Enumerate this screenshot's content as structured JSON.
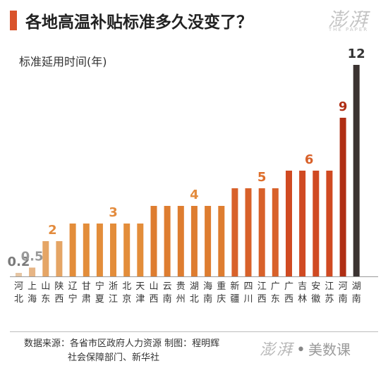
{
  "header": {
    "title": "各地高温补贴标准多久没变了？",
    "accent_color": "#d9532b",
    "logo_text": "澎湃",
    "logo_subtext": "THE PAPER"
  },
  "footer": {
    "source_line1": "数据来源：各省市区政府人力资源   制图：程明辉",
    "source_line2": "社会保障部门、新华社",
    "logo_brand": "澎湃",
    "logo_dot": "•",
    "logo_sub": "美数课"
  },
  "chart_data": {
    "type": "bar",
    "title": "各地高温补贴标准多久没变了？",
    "ylabel": "标准延用时间(年)",
    "xlabel": "",
    "ylim": [
      0,
      12
    ],
    "grid": false,
    "categories": [
      "河北",
      "上海",
      "山东",
      "陕西",
      "辽宁",
      "甘肃",
      "宁夏",
      "浙江",
      "北京",
      "天津",
      "山西",
      "云南",
      "贵州",
      "湖北",
      "海南",
      "重庆",
      "新疆",
      "四川",
      "江西",
      "广东",
      "广西",
      "吉林",
      "安徽",
      "江苏",
      "河南",
      "湖南"
    ],
    "values": [
      0.2,
      0.5,
      2,
      2,
      3,
      3,
      3,
      3,
      3,
      3,
      4,
      4,
      4,
      4,
      4,
      4,
      5,
      5,
      5,
      5,
      6,
      6,
      6,
      6,
      9,
      12
    ],
    "value_labels": [
      {
        "text": "0.2",
        "index": 0
      },
      {
        "text": "0.5",
        "index": 1
      },
      {
        "text": "2",
        "index": 2.5
      },
      {
        "text": "3",
        "index": 7
      },
      {
        "text": "4",
        "index": 13
      },
      {
        "text": "5",
        "index": 18
      },
      {
        "text": "6",
        "index": 21.5
      },
      {
        "text": "9",
        "index": 24
      },
      {
        "text": "12",
        "index": 25
      }
    ],
    "group_colors": {
      "0.2": "#e6c6a4",
      "0.5": "#e6b585",
      "2": "#e5a565",
      "3": "#e38d3a",
      "4": "#de7d30",
      "5": "#d8612a",
      "6": "#d04a22",
      "9": "#b02e14",
      "12": "#3b3331"
    },
    "label_colors": {
      "0.2": "#7a7a7a",
      "0.5": "#999999",
      "2": "#e38b3d",
      "3": "#e38b3d",
      "4": "#e38b3d",
      "5": "#de6f2c",
      "6": "#d8612a",
      "9": "#b02e14",
      "12": "#333333"
    }
  }
}
